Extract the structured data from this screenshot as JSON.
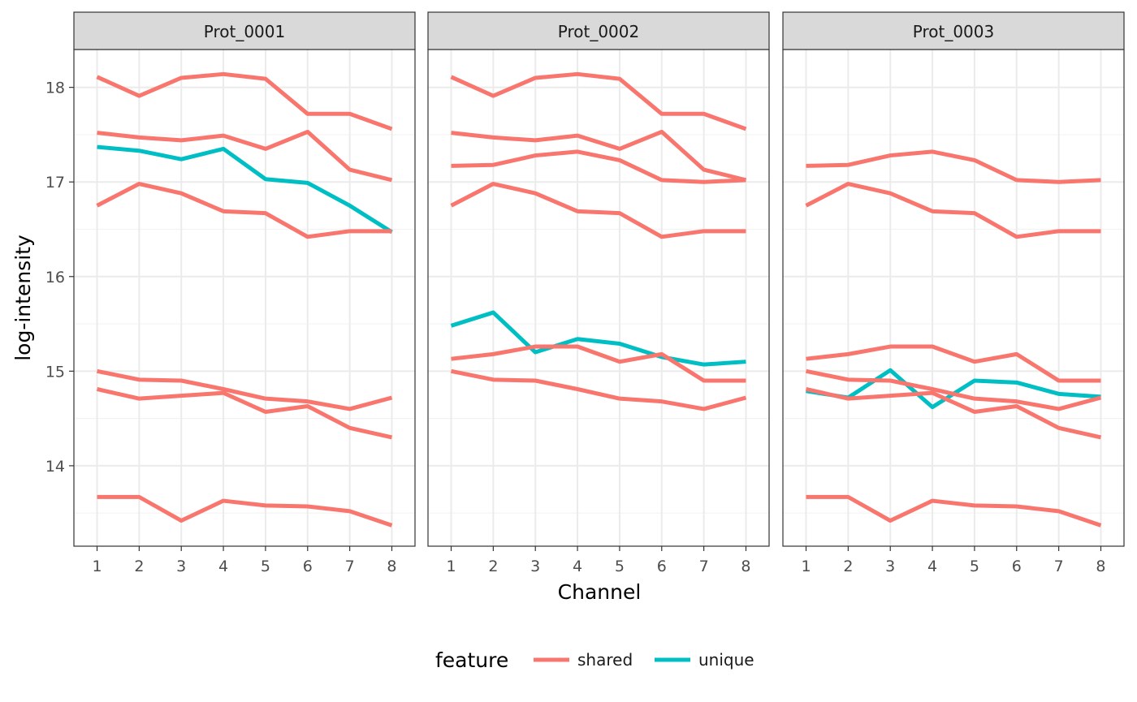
{
  "chart_data": {
    "type": "line",
    "xlabel": "Channel",
    "ylabel": "log-intensity",
    "x": [
      1,
      2,
      3,
      4,
      5,
      6,
      7,
      8
    ],
    "xlim": [
      0.45,
      8.55
    ],
    "ylim": [
      13.15,
      18.4
    ],
    "y_ticks": [
      14,
      15,
      16,
      17,
      18
    ],
    "grid": true,
    "legend": {
      "title": "feature",
      "position": "bottom",
      "entries": [
        {
          "label": "shared",
          "color": "#F8766D"
        },
        {
          "label": "unique",
          "color": "#00BFC4"
        }
      ]
    },
    "colors": {
      "shared": "#F8766D",
      "unique": "#00BFC4"
    },
    "panels": [
      {
        "title": "Prot_0001",
        "series": [
          {
            "feature": "shared",
            "values": [
              18.11,
              17.91,
              18.1,
              18.14,
              18.09,
              17.72,
              17.72,
              17.56
            ]
          },
          {
            "feature": "shared",
            "values": [
              17.52,
              17.47,
              17.44,
              17.49,
              17.35,
              17.53,
              17.13,
              17.02
            ]
          },
          {
            "feature": "unique",
            "values": [
              17.37,
              17.33,
              17.24,
              17.35,
              17.03,
              16.99,
              16.75,
              16.47
            ]
          },
          {
            "feature": "shared",
            "values": [
              16.75,
              16.98,
              16.88,
              16.69,
              16.67,
              16.42,
              16.48,
              16.48
            ]
          },
          {
            "feature": "shared",
            "values": [
              15.0,
              14.91,
              14.9,
              14.81,
              14.71,
              14.68,
              14.6,
              14.72
            ]
          },
          {
            "feature": "shared",
            "values": [
              14.81,
              14.71,
              14.74,
              14.77,
              14.57,
              14.63,
              14.4,
              14.3
            ]
          },
          {
            "feature": "shared",
            "values": [
              13.67,
              13.67,
              13.42,
              13.63,
              13.58,
              13.57,
              13.52,
              13.37
            ]
          }
        ]
      },
      {
        "title": "Prot_0002",
        "series": [
          {
            "feature": "shared",
            "values": [
              18.11,
              17.91,
              18.1,
              18.14,
              18.09,
              17.72,
              17.72,
              17.56
            ]
          },
          {
            "feature": "shared",
            "values": [
              17.52,
              17.47,
              17.44,
              17.49,
              17.35,
              17.53,
              17.13,
              17.02
            ]
          },
          {
            "feature": "shared",
            "values": [
              17.17,
              17.18,
              17.28,
              17.32,
              17.23,
              17.02,
              17.0,
              17.02
            ]
          },
          {
            "feature": "shared",
            "values": [
              16.75,
              16.98,
              16.88,
              16.69,
              16.67,
              16.42,
              16.48,
              16.48
            ]
          },
          {
            "feature": "unique",
            "values": [
              15.48,
              15.62,
              15.2,
              15.34,
              15.29,
              15.15,
              15.07,
              15.1
            ]
          },
          {
            "feature": "shared",
            "values": [
              15.13,
              15.18,
              15.26,
              15.26,
              15.1,
              15.18,
              14.9,
              14.9
            ]
          },
          {
            "feature": "shared",
            "values": [
              15.0,
              14.91,
              14.9,
              14.81,
              14.71,
              14.68,
              14.6,
              14.72
            ]
          }
        ]
      },
      {
        "title": "Prot_0003",
        "series": [
          {
            "feature": "shared",
            "values": [
              17.17,
              17.18,
              17.28,
              17.32,
              17.23,
              17.02,
              17.0,
              17.02
            ]
          },
          {
            "feature": "shared",
            "values": [
              16.75,
              16.98,
              16.88,
              16.69,
              16.67,
              16.42,
              16.48,
              16.48
            ]
          },
          {
            "feature": "shared",
            "values": [
              15.13,
              15.18,
              15.26,
              15.26,
              15.1,
              15.18,
              14.9,
              14.9
            ]
          },
          {
            "feature": "unique",
            "values": [
              14.79,
              14.72,
              15.01,
              14.62,
              14.9,
              14.88,
              14.76,
              14.73
            ]
          },
          {
            "feature": "shared",
            "values": [
              15.0,
              14.91,
              14.9,
              14.81,
              14.71,
              14.68,
              14.6,
              14.72
            ]
          },
          {
            "feature": "shared",
            "values": [
              14.81,
              14.71,
              14.74,
              14.77,
              14.57,
              14.63,
              14.4,
              14.3
            ]
          },
          {
            "feature": "shared",
            "values": [
              13.67,
              13.67,
              13.42,
              13.63,
              13.58,
              13.57,
              13.52,
              13.37
            ]
          }
        ]
      }
    ]
  }
}
